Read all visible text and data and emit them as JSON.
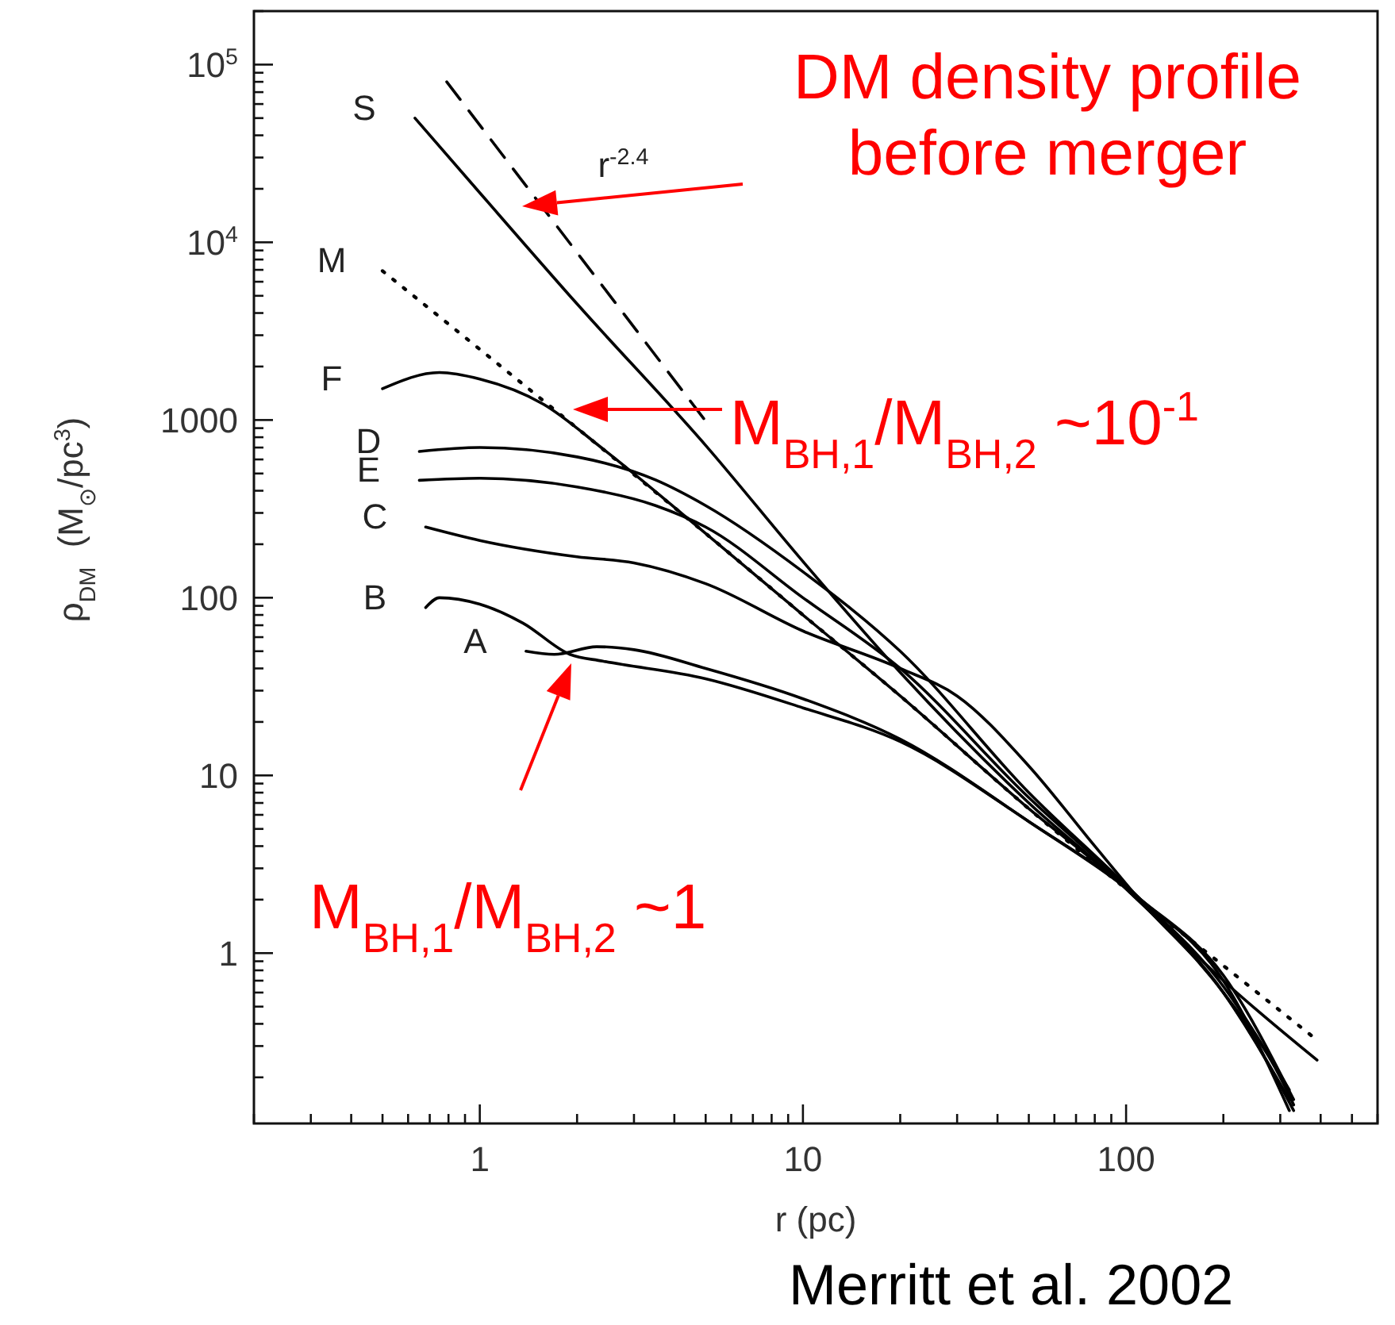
{
  "chart_data": {
    "type": "line",
    "xlabel": "r (pc)",
    "ylabel": "ρ$_{DM}$  (M$_{⊙}$/pc$^{3}$)",
    "log": "xy",
    "xlim": [
      0.2,
      600
    ],
    "ylim": [
      0.11,
      200000
    ],
    "xticks": [
      {
        "value": 0.2,
        "label": null
      },
      {
        "value": 0.3,
        "label": null
      },
      {
        "value": 0.4,
        "label": null
      },
      {
        "value": 0.5,
        "label": null
      },
      {
        "value": 0.6,
        "label": null
      },
      {
        "value": 0.7,
        "label": null
      },
      {
        "value": 0.8,
        "label": null
      },
      {
        "value": 0.9,
        "label": null
      },
      1,
      {
        "value": 2,
        "label": null
      },
      {
        "value": 3,
        "label": null
      },
      {
        "value": 4,
        "label": null
      },
      {
        "value": 5,
        "label": null
      },
      {
        "value": 6,
        "label": null
      },
      {
        "value": 7,
        "label": null
      },
      {
        "value": 8,
        "label": null
      },
      {
        "value": 9,
        "label": null
      },
      10,
      {
        "value": 20,
        "label": null
      },
      {
        "value": 30,
        "label": null
      },
      {
        "value": 40,
        "label": null
      },
      {
        "value": 50,
        "label": null
      },
      {
        "value": 60,
        "label": null
      },
      {
        "value": 70,
        "label": null
      },
      {
        "value": 80,
        "label": null
      },
      {
        "value": 90,
        "label": null
      },
      100,
      {
        "value": 200,
        "label": null
      },
      {
        "value": 300,
        "label": null
      },
      {
        "value": 400,
        "label": null
      },
      {
        "value": 500,
        "label": null
      },
      {
        "value": 600,
        "label": null
      }
    ],
    "yticks": [
      {
        "value": 0.2,
        "label": null
      },
      {
        "value": 0.3,
        "label": null
      },
      {
        "value": 0.4,
        "label": null
      },
      {
        "value": 0.5,
        "label": null
      },
      {
        "value": 0.6,
        "label": null
      },
      {
        "value": 0.7,
        "label": null
      },
      {
        "value": 0.8,
        "label": null
      },
      {
        "value": 0.9,
        "label": null
      },
      1,
      {
        "value": 2,
        "label": null
      },
      {
        "value": 3,
        "label": null
      },
      {
        "value": 4,
        "label": null
      },
      {
        "value": 5,
        "label": null
      },
      {
        "value": 6,
        "label": null
      },
      {
        "value": 7,
        "label": null
      },
      {
        "value": 8,
        "label": null
      },
      {
        "value": 9,
        "label": null
      },
      10,
      {
        "value": 20,
        "label": null
      },
      {
        "value": 30,
        "label": null
      },
      {
        "value": 40,
        "label": null
      },
      {
        "value": 50,
        "label": null
      },
      {
        "value": 60,
        "label": null
      },
      {
        "value": 70,
        "label": null
      },
      {
        "value": 80,
        "label": null
      },
      {
        "value": 90,
        "label": null
      },
      100,
      {
        "value": 200,
        "label": null
      },
      {
        "value": 300,
        "label": null
      },
      {
        "value": 400,
        "label": null
      },
      {
        "value": 500,
        "label": null
      },
      {
        "value": 600,
        "label": null
      },
      {
        "value": 700,
        "label": null
      },
      {
        "value": 800,
        "label": null
      },
      {
        "value": 900,
        "label": null
      },
      1000,
      {
        "value": 2000,
        "label": null
      },
      {
        "value": 3000,
        "label": null
      },
      {
        "value": 4000,
        "label": null
      },
      {
        "value": 5000,
        "label": null
      },
      {
        "value": 6000,
        "label": null
      },
      {
        "value": 7000,
        "label": null
      },
      {
        "value": 8000,
        "label": null
      },
      {
        "value": 9000,
        "label": null
      },
      {
        "value": 10000,
        "label": "10$^{4}$"
      },
      {
        "value": 20000,
        "label": null
      },
      {
        "value": 30000,
        "label": null
      },
      {
        "value": 40000,
        "label": null
      },
      {
        "value": 50000,
        "label": null
      },
      {
        "value": 60000,
        "label": null
      },
      {
        "value": 70000,
        "label": null
      },
      {
        "value": 80000,
        "label": null
      },
      {
        "value": 90000,
        "label": null
      },
      {
        "value": 100000,
        "label": "10$^{5}$"
      },
      {
        "value": 200000,
        "label": null
      }
    ],
    "series": [
      {
        "name": "S",
        "color": "#000000",
        "line_style": "solid",
        "x": [
          0.63,
          1,
          2,
          5,
          10,
          20,
          50,
          100,
          200,
          300,
          330
        ],
        "values": [
          50000,
          19000,
          4500,
          720,
          160,
          38,
          7,
          2.3,
          0.6,
          0.18,
          0.13
        ]
      },
      {
        "name": "r$^{-2.4}$",
        "color": "#000000",
        "line_style": "dashed",
        "x": [
          0.79,
          5.1
        ],
        "values": [
          80000,
          940
        ]
      },
      {
        "name": "M",
        "color": "#000000",
        "line_style": "dotted",
        "x": [
          0.5,
          1,
          2,
          5,
          10,
          20,
          50,
          100,
          200,
          385
        ],
        "values": [
          6900,
          2500,
          900,
          230,
          80,
          28,
          6.5,
          2.3,
          0.85,
          0.33
        ]
      },
      {
        "name": "F",
        "color": "#000000",
        "line_style": "solid",
        "x": [
          0.5,
          0.75,
          1,
          1.57,
          2.4,
          5,
          10,
          20,
          50,
          100,
          200,
          300,
          330
        ],
        "values": [
          1500,
          1850,
          1700,
          1230,
          690,
          230,
          80,
          28,
          6.5,
          2.3,
          0.6,
          0.2,
          0.14
        ]
      },
      {
        "name": "D",
        "color": "#000000",
        "line_style": "solid",
        "x": [
          0.65,
          1,
          2,
          3.5,
          5,
          10,
          20,
          50,
          100,
          200,
          320
        ],
        "values": [
          665,
          700,
          620,
          460,
          330,
          140,
          50,
          8,
          2.4,
          0.65,
          0.17
        ]
      },
      {
        "name": "E",
        "color": "#000000",
        "line_style": "solid",
        "x": [
          0.65,
          1,
          2,
          3.5,
          5,
          10,
          20,
          50,
          100,
          200,
          390
        ],
        "values": [
          458,
          470,
          420,
          330,
          250,
          100,
          40,
          7.5,
          2.4,
          0.7,
          0.25
        ]
      },
      {
        "name": "C",
        "color": "#000000",
        "line_style": "solid",
        "x": [
          0.68,
          1,
          2,
          3,
          5,
          10,
          20,
          30,
          50,
          80,
          110,
          200,
          320
        ],
        "values": [
          250,
          210,
          170,
          157,
          120,
          65,
          40,
          28,
          11.3,
          4,
          2,
          0.6,
          0.15
        ]
      },
      {
        "name": "B",
        "color": "#000000",
        "line_style": "solid",
        "x": [
          0.68,
          0.75,
          1,
          1.36,
          1.9,
          2.4,
          5,
          10,
          20,
          50,
          111,
          200,
          320
        ],
        "values": [
          88,
          100,
          92,
          72,
          48,
          44,
          35,
          24,
          15.5,
          5.5,
          2,
          0.7,
          0.13
        ]
      },
      {
        "name": "A",
        "color": "#000000",
        "line_style": "solid",
        "x": [
          1.39,
          1.7,
          2.3,
          3,
          5,
          10,
          20,
          50,
          111,
          200,
          330
        ],
        "values": [
          50,
          48,
          53,
          51,
          40,
          27,
          16,
          5.5,
          2,
          0.75,
          0.15
        ]
      }
    ],
    "annotations": [
      "DM density profile before merger",
      "M$_{BH,1}$/M$_{BH,2}$ ~10$^{-1}$",
      "M$_{BH,1}$/M$_{BH,2}$ ~1",
      "Merritt et al. 2002"
    ]
  }
}
